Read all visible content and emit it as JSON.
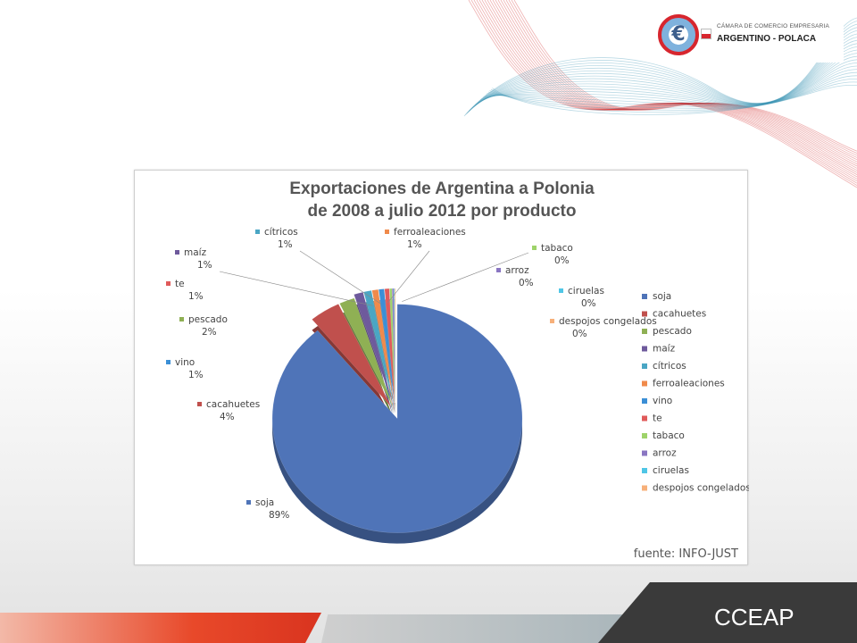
{
  "logo": {
    "top_text": "CÁMARA DE COMERCIO EMPRESARIA",
    "main_text": "ARGENTINO - POLACA"
  },
  "footer": {
    "label": "CCEAP"
  },
  "chart_data": {
    "type": "pie",
    "title_line1": "Exportaciones de Argentina a Polonia",
    "title_line2": "de 2008 a julio 2012 por producto",
    "source": "fuente: INFO-JUST",
    "legend_position": "right",
    "slices": [
      {
        "name": "soja",
        "label": "89%",
        "value": 89.0,
        "color": "#4f74b8"
      },
      {
        "name": "cacahuetes",
        "label": "4%",
        "value": 4.0,
        "color": "#c0504d"
      },
      {
        "name": "pescado",
        "label": "2%",
        "value": 2.0,
        "color": "#8fb054"
      },
      {
        "name": "maíz",
        "label": "1%",
        "value": 1.2,
        "color": "#6e5a9c"
      },
      {
        "name": "cítricos",
        "label": "1%",
        "value": 1.0,
        "color": "#4aa6c4"
      },
      {
        "name": "ferroaleaciones",
        "label": "1%",
        "value": 0.8,
        "color": "#f08a4b"
      },
      {
        "name": "vino",
        "label": "1%",
        "value": 0.7,
        "color": "#3b8fd6"
      },
      {
        "name": "te",
        "label": "1%",
        "value": 0.6,
        "color": "#e05a5a"
      },
      {
        "name": "tabaco",
        "label": "0%",
        "value": 0.3,
        "color": "#9ed36a"
      },
      {
        "name": "arroz",
        "label": "0%",
        "value": 0.2,
        "color": "#8a76c2"
      },
      {
        "name": "ciruelas",
        "label": "0%",
        "value": 0.1,
        "color": "#4fc6e6"
      },
      {
        "name": "despojos congelados",
        "label": "0%",
        "value": 0.1,
        "color": "#f7b07a"
      }
    ]
  }
}
